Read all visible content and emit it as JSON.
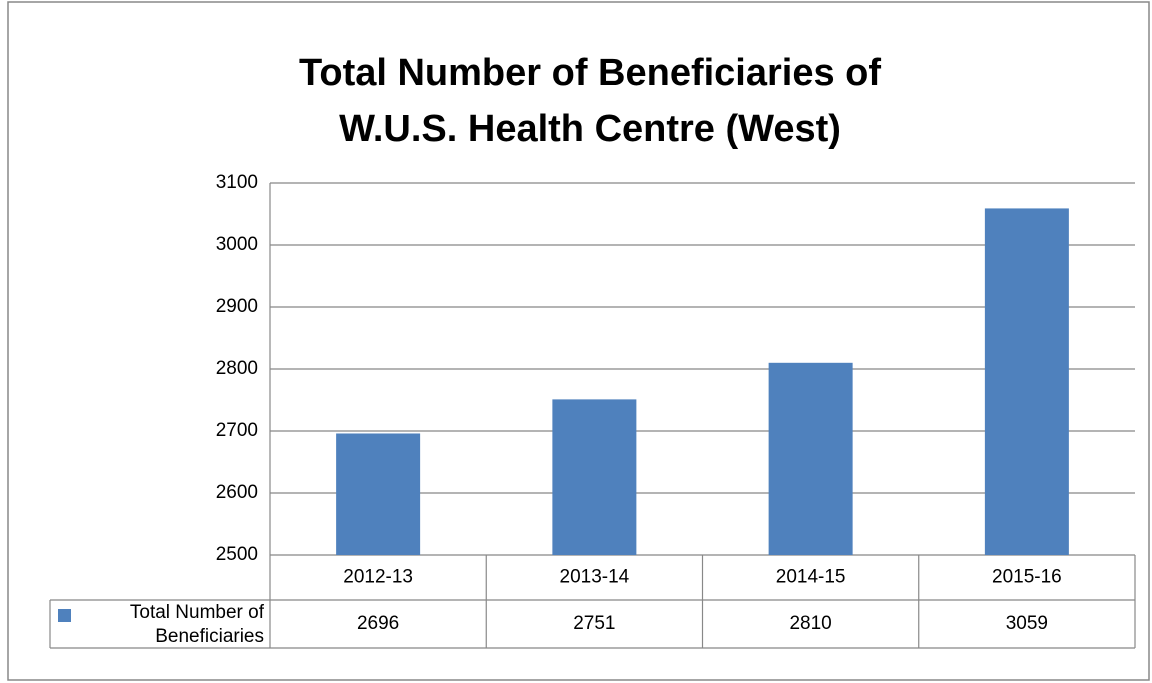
{
  "chart_data": {
    "type": "bar",
    "title": [
      "Total Number of Beneficiaries of",
      "W.U.S. Health Centre (West)"
    ],
    "categories": [
      "2012-13",
      "2013-14",
      "2014-15",
      "2015-16"
    ],
    "series": [
      {
        "name": "Total Number of Beneficiaries",
        "color": "#4f81bd",
        "values": [
          2696,
          2751,
          2810,
          3059
        ]
      }
    ],
    "ylim": [
      2500,
      3100
    ],
    "yticks": [
      2500,
      2600,
      2700,
      2800,
      2900,
      3000,
      3100
    ],
    "grid": true,
    "data_table": true
  }
}
